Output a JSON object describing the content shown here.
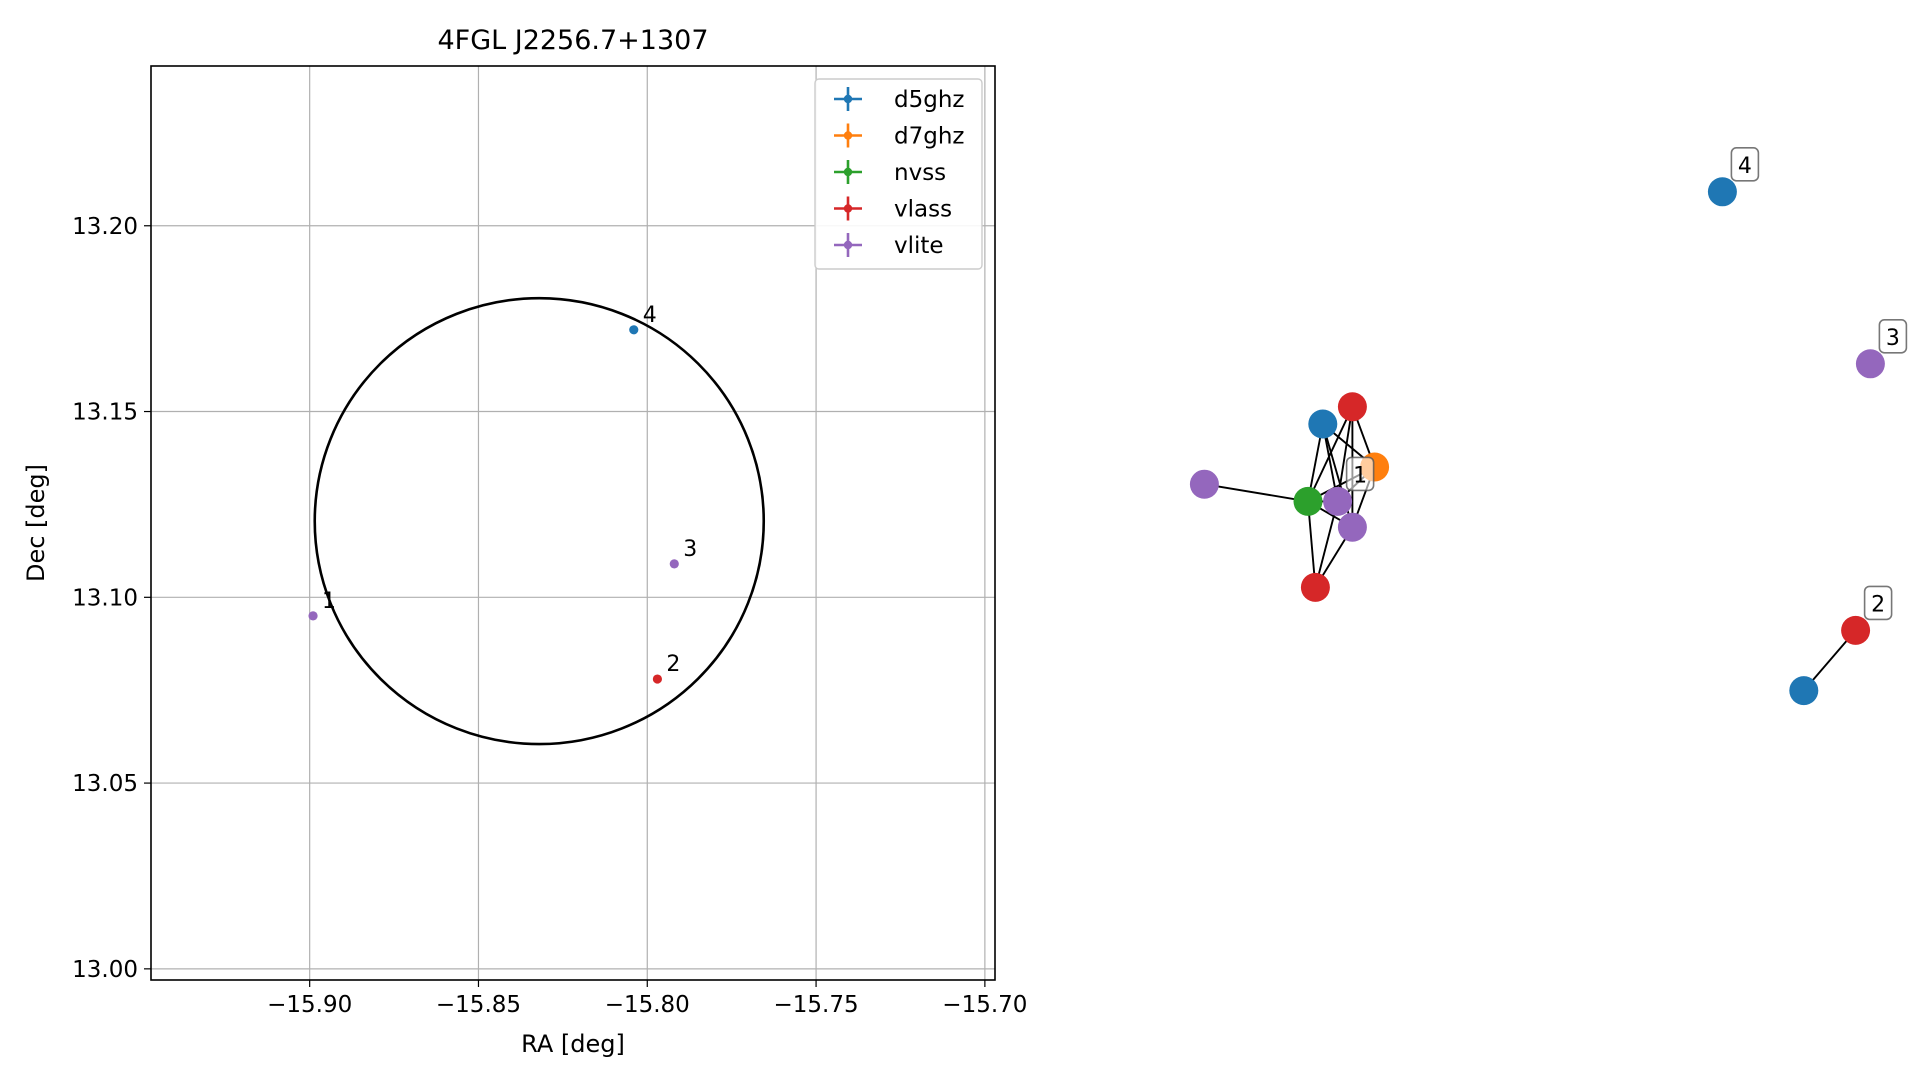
{
  "chart_data": [
    {
      "type": "scatter",
      "title": "4FGL J2256.7+1307",
      "xlabel": "RA [deg]",
      "ylabel": "Dec [deg]",
      "xlim": [
        -15.947,
        -15.697
      ],
      "ylim": [
        12.997,
        13.243
      ],
      "xticks": [
        -15.9,
        -15.85,
        -15.8,
        -15.75,
        -15.7
      ],
      "xtick_labels": [
        "−15.90",
        "−15.85",
        "−15.80",
        "−15.75",
        "−15.70"
      ],
      "yticks": [
        13.0,
        13.05,
        13.1,
        13.15,
        13.2
      ],
      "ytick_labels": [
        "13.00",
        "13.05",
        "13.10",
        "13.15",
        "13.20"
      ],
      "grid": true,
      "legend_position": "top-right",
      "series": [
        {
          "name": "d5ghz",
          "color": "#1f77b4",
          "points": [
            {
              "x": -15.804,
              "y": 13.172,
              "label": "4"
            }
          ]
        },
        {
          "name": "d7ghz",
          "color": "#ff7f0e",
          "points": []
        },
        {
          "name": "nvss",
          "color": "#2ca02c",
          "points": []
        },
        {
          "name": "vlass",
          "color": "#d62728",
          "points": [
            {
              "x": -15.797,
              "y": 13.078,
              "label": "2"
            }
          ]
        },
        {
          "name": "vlite",
          "color": "#9467bd",
          "points": [
            {
              "x": -15.899,
              "y": 13.095,
              "label": "1"
            },
            {
              "x": -15.792,
              "y": 13.109,
              "label": "3"
            }
          ]
        }
      ],
      "ellipse": {
        "center_ra": -15.832,
        "center_dec": 13.1205,
        "semi_ra": 0.0665,
        "semi_dec": 0.06,
        "color": "#000000"
      }
    },
    {
      "type": "network",
      "nodes": [
        {
          "id": "n1",
          "color": "#9467bd",
          "x": 0.06,
          "y": 0.47,
          "label": ""
        },
        {
          "id": "n2",
          "color": "#2ca02c",
          "x": 0.2,
          "y": 0.49,
          "label": ""
        },
        {
          "id": "n3",
          "color": "#1f77b4",
          "x": 0.22,
          "y": 0.4,
          "label": ""
        },
        {
          "id": "n4",
          "color": "#d62728",
          "x": 0.26,
          "y": 0.38,
          "label": ""
        },
        {
          "id": "n5",
          "color": "#9467bd",
          "x": 0.24,
          "y": 0.49,
          "label": "1"
        },
        {
          "id": "n6",
          "color": "#ff7f0e",
          "x": 0.29,
          "y": 0.45,
          "label": ""
        },
        {
          "id": "n7",
          "color": "#9467bd",
          "x": 0.26,
          "y": 0.52,
          "label": ""
        },
        {
          "id": "n8",
          "color": "#d62728",
          "x": 0.21,
          "y": 0.59,
          "label": ""
        },
        {
          "id": "n9",
          "color": "#1f77b4",
          "x": 0.76,
          "y": 0.13,
          "label": "4"
        },
        {
          "id": "n10",
          "color": "#9467bd",
          "x": 0.96,
          "y": 0.33,
          "label": "3"
        },
        {
          "id": "n11",
          "color": "#d62728",
          "x": 0.94,
          "y": 0.64,
          "label": "2"
        },
        {
          "id": "n12",
          "color": "#1f77b4",
          "x": 0.87,
          "y": 0.71,
          "label": ""
        }
      ],
      "edges": [
        [
          "n1",
          "n2"
        ],
        [
          "n2",
          "n3"
        ],
        [
          "n2",
          "n4"
        ],
        [
          "n2",
          "n5"
        ],
        [
          "n2",
          "n6"
        ],
        [
          "n2",
          "n7"
        ],
        [
          "n2",
          "n8"
        ],
        [
          "n3",
          "n5"
        ],
        [
          "n3",
          "n6"
        ],
        [
          "n3",
          "n7"
        ],
        [
          "n4",
          "n5"
        ],
        [
          "n4",
          "n6"
        ],
        [
          "n4",
          "n7"
        ],
        [
          "n5",
          "n6"
        ],
        [
          "n5",
          "n8"
        ],
        [
          "n6",
          "n7"
        ],
        [
          "n7",
          "n8"
        ],
        [
          "n11",
          "n12"
        ]
      ]
    }
  ]
}
